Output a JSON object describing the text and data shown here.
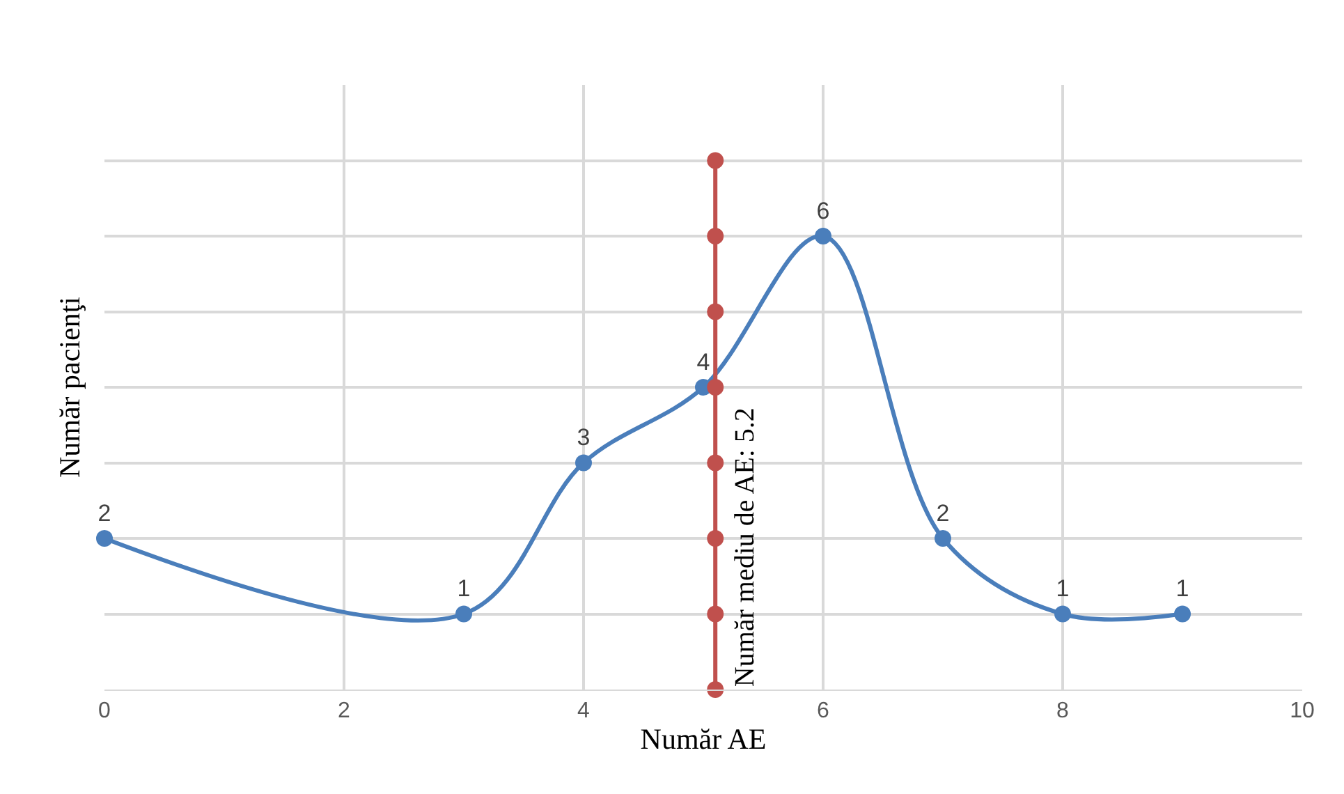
{
  "chart_data": {
    "type": "line",
    "xlabel": "Număr AE",
    "ylabel": "Număr pacienţi",
    "xlim": [
      0,
      10
    ],
    "xticks": [
      0,
      2,
      4,
      6,
      8,
      10
    ],
    "ylim": [
      0,
      8
    ],
    "yticks": [
      {
        "value": 0,
        "label": null
      },
      {
        "value": 1,
        "label": null
      },
      {
        "value": 2,
        "label": null
      },
      {
        "value": 3,
        "label": null
      },
      {
        "value": 4,
        "label": null
      },
      {
        "value": 5,
        "label": null
      },
      {
        "value": 6,
        "label": null
      },
      {
        "value": 7,
        "label": null
      }
    ],
    "tick_labels": "x",
    "grid": true,
    "legend": false,
    "marker": "circle",
    "series": [
      {
        "color": "#4a7ebb",
        "x": [
          0,
          3,
          4,
          5,
          6,
          7,
          8,
          9
        ],
        "values": [
          2,
          1,
          3,
          4,
          6,
          2,
          1,
          1
        ],
        "data_labels": true
      },
      {
        "name": "Număr mediu de AE: 5.2",
        "color": "#c0504d",
        "x": [
          5.1,
          5.1,
          5.1,
          5.1,
          5.1,
          5.1,
          5.1,
          5.1
        ],
        "values": [
          0,
          1,
          2,
          3,
          4,
          5,
          6,
          7
        ]
      }
    ]
  }
}
